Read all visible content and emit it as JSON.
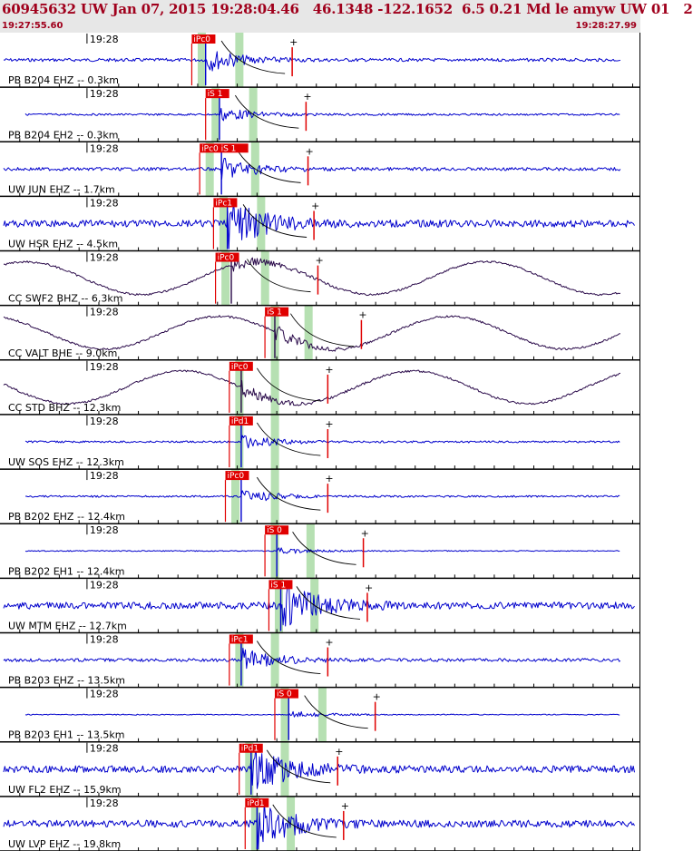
{
  "header": {
    "title": "60945632 UW Jan 07, 2015 19:28:04.46   46.1348 -122.1652  6.5 0.21 Md le amyw UW 01   2",
    "start_time": "19:27:55.60",
    "end_time": "19:28:27.99"
  },
  "colors": {
    "background": "#ffffff",
    "header_bg": "#e7e7e7",
    "header_text": "#a0001c",
    "trace_short_period": "#0000cc",
    "trace_broadband": "#2a0a4a",
    "pick_flag": "#e00000",
    "pick_window": "#a9dba4",
    "coda_curve": "#000000",
    "grid": "#000000"
  },
  "chart_data": {
    "type": "seismogram",
    "time_range": [
      "19:27:55.60",
      "19:28:27.99"
    ],
    "minute_label": "19:28",
    "traces": [
      {
        "station": "PB B204 EHZ -- 0.3km",
        "color": "short_period",
        "amplitude": "medium",
        "picks": [
          {
            "label": "iPc0",
            "time": 9.7
          }
        ],
        "onset": 10.4
      },
      {
        "station": "PB B204 EH2 -- 0.3km",
        "color": "short_period",
        "amplitude": "low",
        "picks": [
          {
            "label": "iS 1",
            "time": 10.4
          }
        ],
        "onset": 11.1
      },
      {
        "station": "UW JUN EHZ -- 1.7km",
        "color": "short_period",
        "amplitude": "medium",
        "picks": [
          {
            "label": "iPc0 iS 1",
            "time": 10.1
          }
        ],
        "onset": 11.2
      },
      {
        "station": "UW HSR EHZ -- 4.5km",
        "color": "short_period",
        "amplitude": "high",
        "picks": [
          {
            "label": "iPc1",
            "time": 10.8
          }
        ],
        "onset": 11.5
      },
      {
        "station": "CC SWF2 BHZ -- 6.3km",
        "color": "broadband",
        "amplitude": "long_period",
        "picks": [
          {
            "label": "iPc0",
            "time": 10.9
          }
        ],
        "onset": 11.7
      },
      {
        "station": "CC VALT BHE -- 9.0km",
        "color": "broadband",
        "amplitude": "long_period",
        "picks": [
          {
            "label": "iS 1",
            "time": 13.4
          }
        ],
        "onset": 13.9
      },
      {
        "station": "CC STD BHZ -- 12.3km",
        "color": "broadband",
        "amplitude": "long_period",
        "picks": [
          {
            "label": "iPc0",
            "time": 11.6
          }
        ],
        "onset": 12.2
      },
      {
        "station": "UW SOS EHZ -- 12.3km",
        "color": "short_period",
        "amplitude": "low",
        "picks": [
          {
            "label": "iPd1",
            "time": 11.6
          }
        ],
        "onset": 12.2
      },
      {
        "station": "PB B202 EHZ -- 12.4km",
        "color": "short_period",
        "amplitude": "low",
        "picks": [
          {
            "label": "iPc0",
            "time": 11.4
          }
        ],
        "onset": 12.2
      },
      {
        "station": "PB B202 EH1 -- 12.4km",
        "color": "short_period",
        "amplitude": "very_low",
        "picks": [
          {
            "label": "iS 0",
            "time": 13.4
          }
        ],
        "onset": 14.0
      },
      {
        "station": "UW MTM EHZ -- 12.7km",
        "color": "short_period",
        "amplitude": "high",
        "picks": [
          {
            "label": "iS 1",
            "time": 13.6
          }
        ],
        "onset": 14.2
      },
      {
        "station": "PB B203 EHZ -- 13.5km",
        "color": "short_period",
        "amplitude": "medium",
        "picks": [
          {
            "label": "iPc1",
            "time": 11.6
          }
        ],
        "onset": 12.2
      },
      {
        "station": "PB B203 EH1 -- 13.5km",
        "color": "short_period",
        "amplitude": "very_low",
        "picks": [
          {
            "label": "iS 0",
            "time": 13.9
          }
        ],
        "onset": 14.6
      },
      {
        "station": "UW FL2 EHZ -- 15.9km",
        "color": "short_period",
        "amplitude": "high",
        "picks": [
          {
            "label": "iPd1",
            "time": 12.1
          }
        ],
        "onset": 12.7
      },
      {
        "station": "UW LVP EHZ -- 19.8km",
        "color": "short_period",
        "amplitude": "high",
        "picks": [
          {
            "label": "iPd1",
            "time": 12.4
          }
        ],
        "onset": 13.0
      }
    ]
  }
}
